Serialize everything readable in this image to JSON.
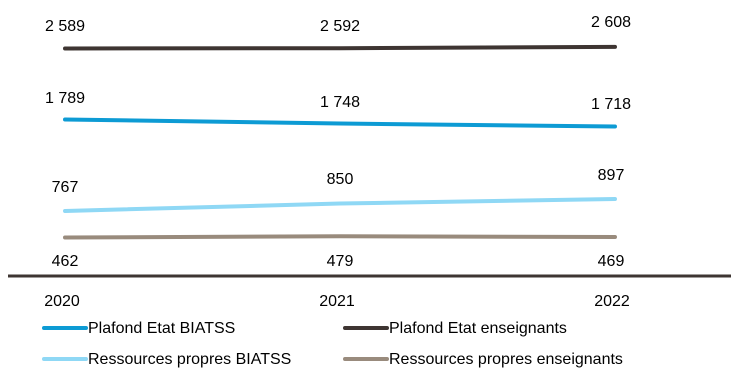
{
  "chart_data": {
    "type": "line",
    "title": "",
    "xlabel": "",
    "ylabel": "",
    "x": [
      "2020",
      "2021",
      "2022"
    ],
    "series": [
      {
        "name": "Plafond Etat enseignants",
        "color": "#3e3532",
        "values": [
          2589,
          2592,
          2608
        ],
        "labels": [
          "2 589",
          "2 592",
          "2 608"
        ]
      },
      {
        "name": "Plafond Etat BIATSS",
        "color": "#0d9bd4",
        "values": [
          1789,
          1748,
          1718
        ],
        "labels": [
          "1 789",
          "1 748",
          "1 718"
        ]
      },
      {
        "name": "Ressources propres BIATSS",
        "color": "#8fd8f5",
        "values": [
          767,
          850,
          897
        ],
        "labels": [
          "767",
          "850",
          "897"
        ]
      },
      {
        "name": "Ressources propres enseignants",
        "color": "#998b7d",
        "values": [
          462,
          479,
          469
        ],
        "labels": [
          "462",
          "479",
          "469"
        ]
      }
    ],
    "grid": false,
    "legend_position": "bottom",
    "axis_color": "#3e3532"
  }
}
